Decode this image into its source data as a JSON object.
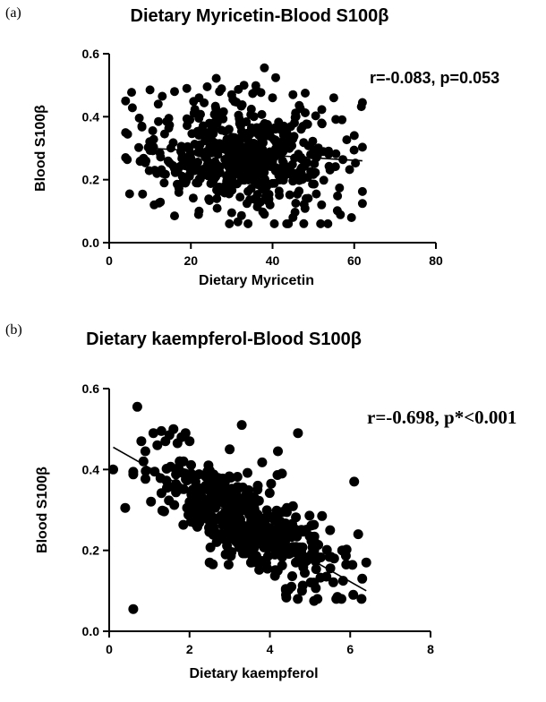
{
  "panels": [
    {
      "label": "(a)"
    },
    {
      "label": "(b)"
    }
  ],
  "chart_data": [
    {
      "type": "scatter",
      "title": "Dietary Myricetin-Blood S100β",
      "xlabel": "Dietary Myricetin",
      "ylabel": "Blood S100β",
      "xlim": [
        0,
        80
      ],
      "ylim": [
        0,
        0.6
      ],
      "xticks": [
        "0",
        "20",
        "40",
        "60",
        "80"
      ],
      "yticks": [
        "0.0",
        "0.2",
        "0.4",
        "0.6"
      ],
      "annotation": "r=-0.083, p=0.053",
      "trendline": {
        "x": [
          10,
          62
        ],
        "y": [
          0.3,
          0.26
        ]
      },
      "generated": {
        "n": 560,
        "seed": 17,
        "x_mean": 33,
        "x_sd": 11,
        "x_min": 4,
        "x_max": 62,
        "y_mean": 0.275,
        "y_sd": 0.085,
        "y_min": 0.06,
        "y_max": 0.55,
        "slope": -0.0008
      },
      "points": [
        [
          38,
          0.555
        ],
        [
          33,
          0.5
        ],
        [
          36,
          0.485
        ],
        [
          24,
          0.495
        ],
        [
          10,
          0.485
        ],
        [
          13,
          0.465
        ],
        [
          16,
          0.48
        ],
        [
          19,
          0.49
        ],
        [
          48,
          0.475
        ],
        [
          55,
          0.46
        ],
        [
          62,
          0.445
        ],
        [
          45,
          0.47
        ],
        [
          40,
          0.46
        ],
        [
          30,
          0.47
        ],
        [
          27,
          0.48
        ],
        [
          22,
          0.46
        ],
        [
          12,
          0.44
        ],
        [
          60,
          0.34
        ],
        [
          57,
          0.39
        ],
        [
          52,
          0.38
        ],
        [
          16,
          0.085
        ],
        [
          34,
          0.06
        ],
        [
          45,
          0.08
        ],
        [
          38,
          0.09
        ],
        [
          30,
          0.095
        ],
        [
          22,
          0.1
        ],
        [
          52,
          0.12
        ],
        [
          5,
          0.155
        ],
        [
          11,
          0.12
        ],
        [
          9,
          0.26
        ],
        [
          4,
          0.27
        ],
        [
          8,
          0.37
        ]
      ]
    },
    {
      "type": "scatter",
      "title": "Dietary kaempferol-Blood S100β",
      "xlabel": "Dietary kaempferol",
      "ylabel": "Blood S100β",
      "xlim": [
        0,
        8
      ],
      "ylim": [
        0,
        0.6
      ],
      "xticks": [
        "0",
        "2",
        "4",
        "6",
        "8"
      ],
      "yticks": [
        "0.0",
        "0.2",
        "0.4",
        "0.6"
      ],
      "annotation": "r=-0.698, p*<0.001",
      "trendline": {
        "x": [
          0.1,
          6.4
        ],
        "y": [
          0.455,
          0.1
        ]
      },
      "generated": {
        "n": 470,
        "seed": 29,
        "x_mean": 3.3,
        "x_sd": 1.05,
        "x_min": 0.6,
        "x_max": 6.3,
        "slope": -0.056,
        "intercept": 0.46,
        "noise": 0.05,
        "y_min": 0.08,
        "y_max": 0.42
      },
      "points": [
        [
          0.7,
          0.555
        ],
        [
          0.6,
          0.055
        ],
        [
          0.1,
          0.4
        ],
        [
          0.4,
          0.305
        ],
        [
          3.3,
          0.51
        ],
        [
          4.7,
          0.49
        ],
        [
          4.2,
          0.445
        ],
        [
          3.0,
          0.45
        ],
        [
          1.1,
          0.49
        ],
        [
          1.3,
          0.495
        ],
        [
          1.6,
          0.5
        ],
        [
          1.8,
          0.48
        ],
        [
          0.8,
          0.47
        ],
        [
          1.5,
          0.485
        ],
        [
          2.0,
          0.47
        ],
        [
          1.9,
          0.49
        ],
        [
          1.2,
          0.46
        ],
        [
          1.7,
          0.465
        ],
        [
          0.9,
          0.445
        ],
        [
          1.4,
          0.47
        ],
        [
          6.1,
          0.37
        ],
        [
          6.4,
          0.17
        ],
        [
          6.3,
          0.13
        ],
        [
          5.9,
          0.165
        ],
        [
          5.8,
          0.2
        ],
        [
          5.5,
          0.25
        ],
        [
          5.3,
          0.285
        ],
        [
          5.1,
          0.075
        ],
        [
          4.4,
          0.09
        ],
        [
          4.8,
          0.1
        ],
        [
          2.5,
          0.17
        ],
        [
          2.9,
          0.19
        ],
        [
          4.3,
          0.39
        ],
        [
          3.7,
          0.36
        ],
        [
          5.6,
          0.18
        ],
        [
          6.2,
          0.24
        ]
      ]
    }
  ]
}
